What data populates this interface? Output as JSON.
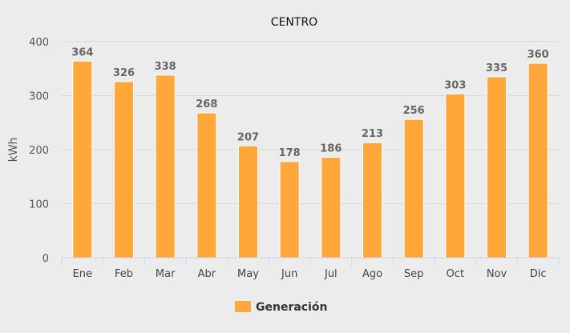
{
  "chart_data": {
    "type": "bar",
    "title": "CENTRO",
    "ylabel": "kWh",
    "xlabel": "",
    "categories": [
      "Ene",
      "Feb",
      "Mar",
      "Abr",
      "May",
      "Jun",
      "Jul",
      "Ago",
      "Sep",
      "Oct",
      "Nov",
      "Dic"
    ],
    "series": [
      {
        "name": "Generación",
        "values": [
          364,
          326,
          338,
          268,
          207,
          178,
          186,
          213,
          256,
          303,
          335,
          360
        ],
        "color": "#ffa73a"
      }
    ],
    "ylim": [
      0,
      400
    ],
    "yticks": [
      0,
      100,
      200,
      300,
      400
    ],
    "grid": true,
    "legend": "bottom-center"
  }
}
